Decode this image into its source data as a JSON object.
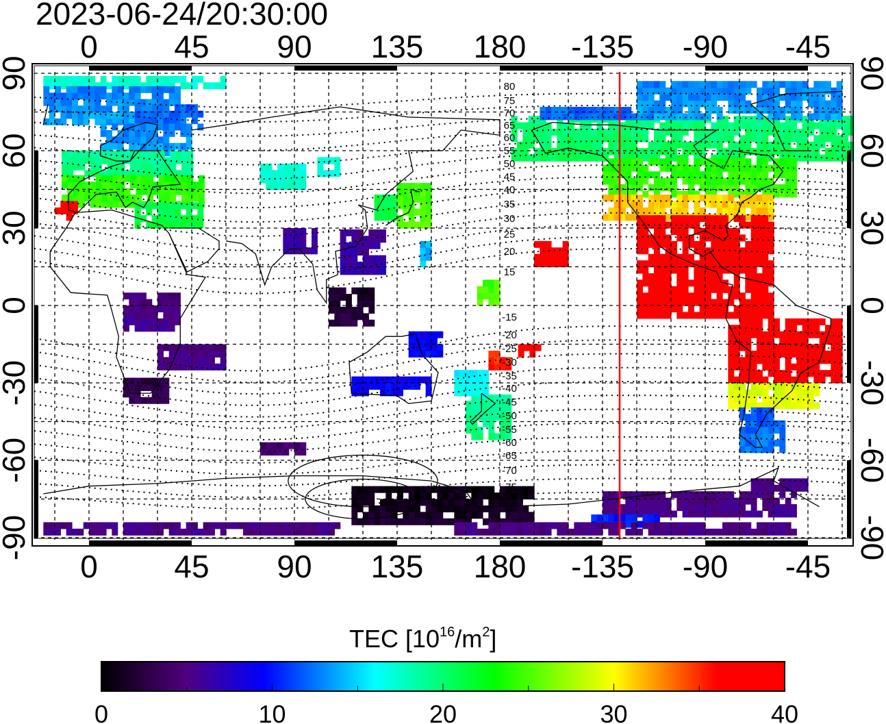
{
  "title": "2023-06-24/20:30:00",
  "chart_data": {
    "type": "heatmap",
    "projection": "equirectangular",
    "lon_range": [
      -24,
      334
    ],
    "lat_range": [
      -90,
      90
    ],
    "lon_ticks": [
      "0",
      "45",
      "90",
      "135",
      "180",
      "-135",
      "-90",
      "-45"
    ],
    "lon_tick_values": [
      0,
      45,
      90,
      135,
      180,
      225,
      270,
      315
    ],
    "lat_ticks": [
      "90",
      "60",
      "30",
      "0",
      "-30",
      "-60",
      "-90"
    ],
    "lat_tick_values": [
      90,
      60,
      30,
      0,
      -30,
      -60,
      -90
    ],
    "grid_step_deg": 15,
    "grid": true,
    "marker_line_lon": -127.5,
    "marker_line_color": "#ff0000",
    "contour_labels": [
      "80",
      "75",
      "70",
      "65",
      "60",
      "55",
      "50",
      "45",
      "40",
      "35",
      "30",
      "25",
      "20",
      "15",
      "-15",
      "-20",
      "-25",
      "-30",
      "-35",
      "-40",
      "-45",
      "-50",
      "-55",
      "-60",
      "-65",
      "-70",
      "-75"
    ],
    "contour_label_values": [
      80,
      75,
      70,
      65,
      60,
      55,
      50,
      45,
      40,
      35,
      30,
      25,
      20,
      15,
      -15,
      -20,
      -25,
      -30,
      -35,
      -40,
      -45,
      -50,
      -55,
      -60,
      -65,
      -70,
      -75
    ],
    "tec_regions": [
      {
        "lon": [
          -20,
          60
        ],
        "lat": [
          84,
          88
        ],
        "tec": 17
      },
      {
        "lon": [
          -20,
          40
        ],
        "lat": [
          70,
          84
        ],
        "tec": 13
      },
      {
        "lon": [
          20,
          50
        ],
        "lat": [
          68,
          76
        ],
        "tec": 12
      },
      {
        "lon": [
          5,
          45
        ],
        "lat": [
          58,
          70
        ],
        "tec": 13
      },
      {
        "lon": [
          -12,
          45
        ],
        "lat": [
          50,
          58
        ],
        "tec": 19
      },
      {
        "lon": [
          -12,
          50
        ],
        "lat": [
          38,
          50
        ],
        "tec": 24
      },
      {
        "lon": [
          -15,
          -5
        ],
        "lat": [
          33,
          39
        ],
        "tec": 38
      },
      {
        "lon": [
          20,
          50
        ],
        "lat": [
          30,
          40
        ],
        "tec": 21
      },
      {
        "lon": [
          75,
          95
        ],
        "lat": [
          45,
          55
        ],
        "tec": 17
      },
      {
        "lon": [
          100,
          108
        ],
        "lat": [
          50,
          56
        ],
        "tec": 17
      },
      {
        "lon": [
          125,
          135
        ],
        "lat": [
          33,
          43
        ],
        "tec": 21
      },
      {
        "lon": [
          135,
          150
        ],
        "lat": [
          30,
          47
        ],
        "tec": 25
      },
      {
        "lon": [
          145,
          150
        ],
        "lat": [
          15,
          25
        ],
        "tec": 14
      },
      {
        "lon": [
          110,
          130
        ],
        "lat": [
          12,
          28
        ],
        "tec": 6
      },
      {
        "lon": [
          105,
          125
        ],
        "lat": [
          -8,
          5
        ],
        "tec": 2
      },
      {
        "lon": [
          85,
          100
        ],
        "lat": [
          20,
          28
        ],
        "tec": 6
      },
      {
        "lon": [
          15,
          40
        ],
        "lat": [
          -10,
          5
        ],
        "tec": 5
      },
      {
        "lon": [
          30,
          60
        ],
        "lat": [
          -25,
          -15
        ],
        "tec": 5
      },
      {
        "lon": [
          15,
          35
        ],
        "lat": [
          -38,
          -28
        ],
        "tec": 3
      },
      {
        "lon": [
          115,
          150
        ],
        "lat": [
          -35,
          -28
        ],
        "tec": 9
      },
      {
        "lon": [
          140,
          155
        ],
        "lat": [
          -20,
          -10
        ],
        "tec": 9
      },
      {
        "lon": [
          165,
          185
        ],
        "lat": [
          -52,
          -36
        ],
        "tec": 19
      },
      {
        "lon": [
          160,
          175
        ],
        "lat": [
          -35,
          -25
        ],
        "tec": 16
      },
      {
        "lon": [
          170,
          180
        ],
        "lat": [
          0,
          8
        ],
        "tec": 25
      },
      {
        "lon": [
          195,
          210
        ],
        "lat": [
          15,
          25
        ],
        "tec": 40
      },
      {
        "lon": [
          188,
          198
        ],
        "lat": [
          -20,
          -15
        ],
        "tec": 40
      },
      {
        "lon": [
          175,
          185
        ],
        "lat": [
          -25,
          -18
        ],
        "tec": 35
      },
      {
        "lon": [
          185,
          335
        ],
        "lat": [
          56,
          72
        ],
        "tec": 20
      },
      {
        "lon": [
          195,
          260
        ],
        "lat": [
          72,
          76
        ],
        "tec": 12
      },
      {
        "lon": [
          240,
          330
        ],
        "lat": [
          72,
          86
        ],
        "tec": 13
      },
      {
        "lon": [
          225,
          310
        ],
        "lat": [
          42,
          56
        ],
        "tec": 24
      },
      {
        "lon": [
          225,
          300
        ],
        "lat": [
          33,
          42
        ],
        "tec": 31
      },
      {
        "lon": [
          240,
          300
        ],
        "lat": [
          -5,
          33
        ],
        "tec": 40
      },
      {
        "lon": [
          280,
          330
        ],
        "lat": [
          -30,
          -5
        ],
        "tec": 40
      },
      {
        "lon": [
          280,
          318
        ],
        "lat": [
          -40,
          -30
        ],
        "tec": 29
      },
      {
        "lon": [
          285,
          305
        ],
        "lat": [
          -57,
          -40
        ],
        "tec": 12
      },
      {
        "lon": [
          115,
          195
        ],
        "lat": [
          -85,
          -72
        ],
        "tec": 1
      },
      {
        "lon": [
          225,
          310
        ],
        "lat": [
          -82,
          -72
        ],
        "tec": 5
      },
      {
        "lon": [
          290,
          315
        ],
        "lat": [
          -72,
          -67
        ],
        "tec": 5
      },
      {
        "lon": [
          220,
          250
        ],
        "lat": [
          -86,
          -83
        ],
        "tec": 10
      },
      {
        "lon": [
          -20,
          110
        ],
        "lat": [
          -89,
          -86
        ],
        "tec": 5
      },
      {
        "lon": [
          160,
          310
        ],
        "lat": [
          -89,
          -86
        ],
        "tec": 5
      },
      {
        "lon": [
          75,
          95
        ],
        "lat": [
          -58,
          -53
        ],
        "tec": 4
      }
    ]
  },
  "colorbar": {
    "title": "TEC  [10",
    "title_sup": "16",
    "title_mid": "/m",
    "title_sup2": "2",
    "title_end": "]",
    "min": 0,
    "max": 40,
    "tick_labels": [
      "0",
      "10",
      "20",
      "30",
      "40"
    ],
    "colors": [
      "#000000",
      "#50007f",
      "#0000ff",
      "#00ffff",
      "#00ff00",
      "#ffff00",
      "#ff0000",
      "#ff0000"
    ],
    "color_stops": [
      0,
      5,
      9.5,
      16,
      23,
      30,
      36,
      40
    ]
  }
}
